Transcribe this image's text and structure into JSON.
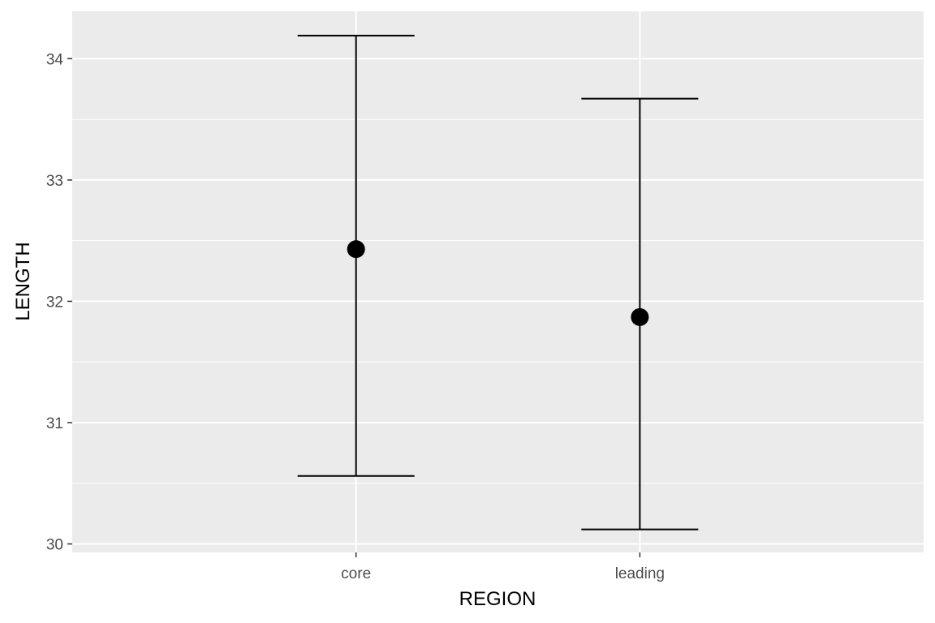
{
  "chart_data": {
    "type": "errorbar",
    "xlabel": "REGION",
    "ylabel": "LENGTH",
    "categories": [
      "core",
      "leading"
    ],
    "points": [
      {
        "category": "core",
        "mean": 32.43,
        "lower": 30.56,
        "upper": 34.19
      },
      {
        "category": "leading",
        "mean": 31.87,
        "lower": 30.12,
        "upper": 33.67
      }
    ],
    "ylim": [
      29.93,
      34.39
    ],
    "yticks": [
      30,
      31,
      32,
      33,
      34
    ],
    "grid": true,
    "legend": "none",
    "colors": {
      "panel": "#ebebeb",
      "grid": "#ffffff",
      "mark": "#000000",
      "tick_text": "#4d4d4d"
    }
  }
}
